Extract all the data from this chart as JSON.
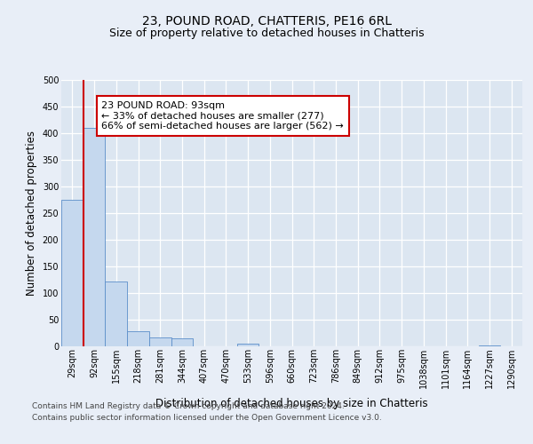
{
  "title": "23, POUND ROAD, CHATTERIS, PE16 6RL",
  "subtitle": "Size of property relative to detached houses in Chatteris",
  "xlabel": "Distribution of detached houses by size in Chatteris",
  "ylabel": "Number of detached properties",
  "bar_labels": [
    "29sqm",
    "92sqm",
    "155sqm",
    "218sqm",
    "281sqm",
    "344sqm",
    "407sqm",
    "470sqm",
    "533sqm",
    "596sqm",
    "660sqm",
    "723sqm",
    "786sqm",
    "849sqm",
    "912sqm",
    "975sqm",
    "1038sqm",
    "1101sqm",
    "1164sqm",
    "1227sqm",
    "1290sqm"
  ],
  "bar_values": [
    275,
    410,
    122,
    29,
    16,
    15,
    0,
    0,
    5,
    0,
    0,
    0,
    0,
    0,
    0,
    0,
    0,
    0,
    0,
    2,
    0
  ],
  "bar_color": "#c5d8ee",
  "bar_edge_color": "#5b8ec9",
  "background_color": "#e8eef7",
  "plot_bg_color": "#dce6f1",
  "grid_color": "#ffffff",
  "red_line_color": "#cc0000",
  "annotation_text_line1": "23 POUND ROAD: 93sqm",
  "annotation_text_line2": "← 33% of detached houses are smaller (277)",
  "annotation_text_line3": "66% of semi-detached houses are larger (562) →",
  "annotation_box_color": "#ffffff",
  "annotation_box_edge": "#cc0000",
  "footer_line1": "Contains HM Land Registry data © Crown copyright and database right 2024.",
  "footer_line2": "Contains public sector information licensed under the Open Government Licence v3.0.",
  "ylim": [
    0,
    500
  ],
  "yticks": [
    0,
    50,
    100,
    150,
    200,
    250,
    300,
    350,
    400,
    450,
    500
  ],
  "title_fontsize": 10,
  "subtitle_fontsize": 9,
  "axis_label_fontsize": 8.5,
  "tick_fontsize": 7,
  "footer_fontsize": 6.5,
  "annotation_fontsize": 8
}
